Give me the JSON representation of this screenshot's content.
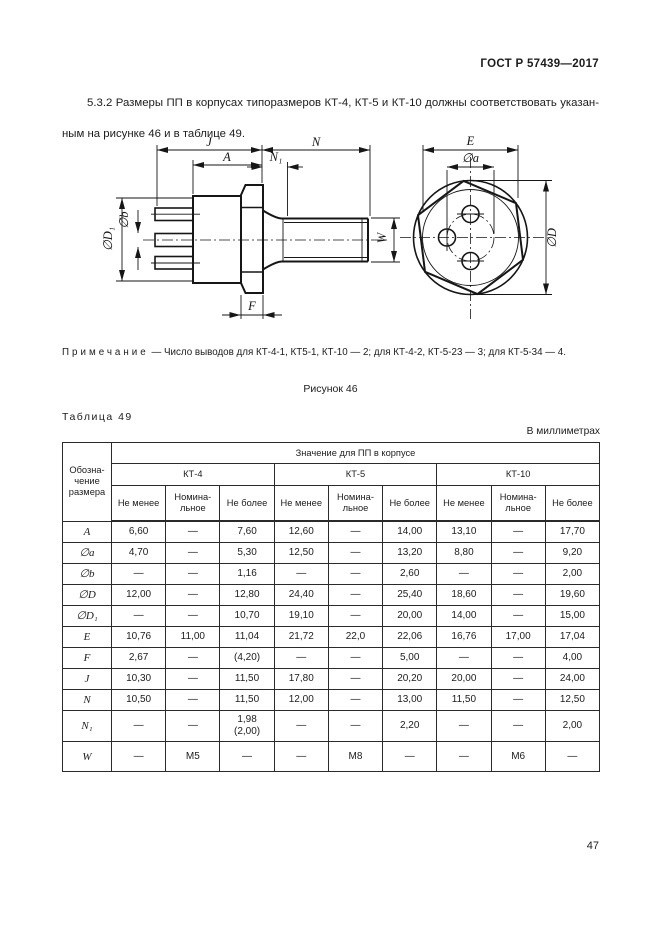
{
  "header": {
    "title": "ГОСТ Р 57439—2017"
  },
  "paragraph": {
    "line1": "5.3.2 Размеры ПП в корпусах типоразмеров КТ-4, КТ-5 и КТ-10 должны соответствовать указан-",
    "line2": "ным на рисунке 46 и в таблице 49."
  },
  "figure": {
    "caption": "Рисунок 46",
    "note_label": "Примечание",
    "note_text": "— Число выводов для КТ-4-1, КТ5-1, КТ-10 — 2; для КТ-4-2, КТ-5-23 — 3; для КТ-5-34 — 4.",
    "dims": {
      "j": "J",
      "a": "A",
      "n": "N",
      "n1": "N₁",
      "b": "∅b",
      "d1": "∅D₁",
      "w": "W",
      "f": "F",
      "e": "E",
      "da": "∅a",
      "dd": "∅D"
    }
  },
  "table": {
    "label": "Таблица 49",
    "units": "В миллиметрах",
    "col1_header": "Обозна-\nчение\nразмера",
    "group_header": "Значение для ПП в корпусе",
    "groups": [
      "КТ-4",
      "КТ-5",
      "КТ-10"
    ],
    "subheaders": [
      "Не менее",
      "Номина-\nльное",
      "Не более"
    ],
    "rows": [
      {
        "label": "A",
        "values": [
          "6,60",
          "—",
          "7,60",
          "12,60",
          "—",
          "14,00",
          "13,10",
          "—",
          "17,70"
        ]
      },
      {
        "label": "∅a",
        "values": [
          "4,70",
          "—",
          "5,30",
          "12,50",
          "—",
          "13,20",
          "8,80",
          "—",
          "9,20"
        ]
      },
      {
        "label": "∅b",
        "values": [
          "—",
          "—",
          "1,16",
          "—",
          "—",
          "2,60",
          "—",
          "—",
          "2,00"
        ]
      },
      {
        "label": "∅D",
        "values": [
          "12,00",
          "—",
          "12,80",
          "24,40",
          "—",
          "25,40",
          "18,60",
          "—",
          "19,60"
        ]
      },
      {
        "label": "∅D₁",
        "values": [
          "—",
          "—",
          "10,70",
          "19,10",
          "—",
          "20,00",
          "14,00",
          "—",
          "15,00"
        ]
      },
      {
        "label": "E",
        "values": [
          "10,76",
          "11,00",
          "11,04",
          "21,72",
          "22,0",
          "22,06",
          "16,76",
          "17,00",
          "17,04"
        ]
      },
      {
        "label": "F",
        "values": [
          "2,67",
          "—",
          "(4,20)",
          "—",
          "—",
          "5,00",
          "—",
          "—",
          "4,00"
        ]
      },
      {
        "label": "J",
        "values": [
          "10,30",
          "—",
          "11,50",
          "17,80",
          "—",
          "20,20",
          "20,00",
          "—",
          "24,00"
        ]
      },
      {
        "label": "N",
        "values": [
          "10,50",
          "—",
          "11,50",
          "12,00",
          "—",
          "13,00",
          "11,50",
          "—",
          "12,50"
        ]
      },
      {
        "label": "N₁",
        "values": [
          "—",
          "—",
          "1,98\n(2,00)",
          "—",
          "—",
          "2,20",
          "—",
          "—",
          "2,00"
        ]
      },
      {
        "label": "W",
        "values": [
          "—",
          "M5",
          "—",
          "—",
          "M8",
          "—",
          "—",
          "M6",
          "—"
        ]
      }
    ]
  },
  "page": {
    "number": "47"
  }
}
